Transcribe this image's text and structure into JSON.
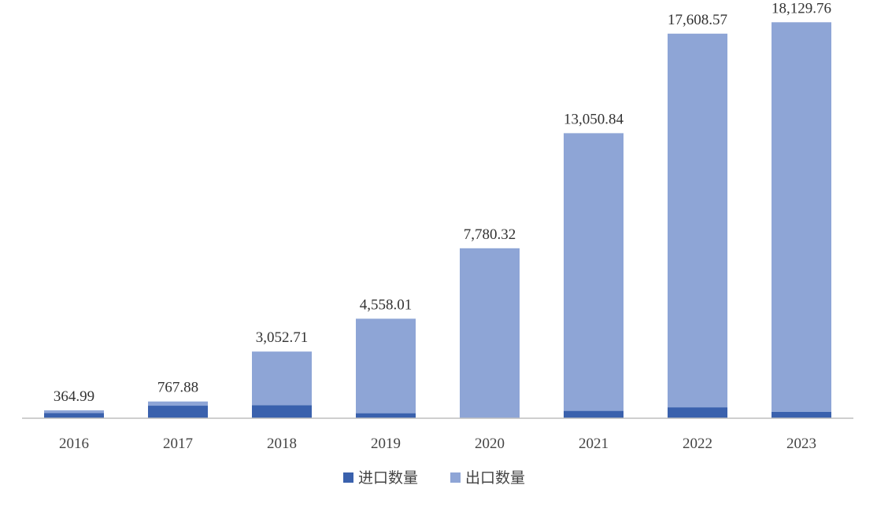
{
  "chart_data": {
    "type": "bar",
    "stacked": true,
    "categories": [
      "2016",
      "2017",
      "2018",
      "2019",
      "2020",
      "2021",
      "2022",
      "2023"
    ],
    "series": [
      {
        "name": "进口数量",
        "color": "#3a61ad",
        "values": [
          235,
          575,
          600,
          230,
          5,
          340,
          500,
          290
        ]
      },
      {
        "name": "出口数量",
        "color": "#8ea5d6",
        "values": [
          129.99,
          192.88,
          2452.71,
          4328.01,
          7775.32,
          12710.84,
          17108.57,
          17839.76
        ]
      }
    ],
    "totals": [
      364.99,
      767.88,
      3052.71,
      4558.01,
      7780.32,
      13050.84,
      17608.57,
      18129.76
    ],
    "total_labels": [
      "364.99",
      "767.88",
      "3,052.71",
      "4,558.01",
      "7,780.32",
      "13,050.84",
      "17,608.57",
      "18,129.76"
    ],
    "ylim": [
      0,
      18500
    ],
    "grid": false,
    "legend_position": "bottom-center",
    "title": "",
    "xlabel": "",
    "ylabel": ""
  }
}
